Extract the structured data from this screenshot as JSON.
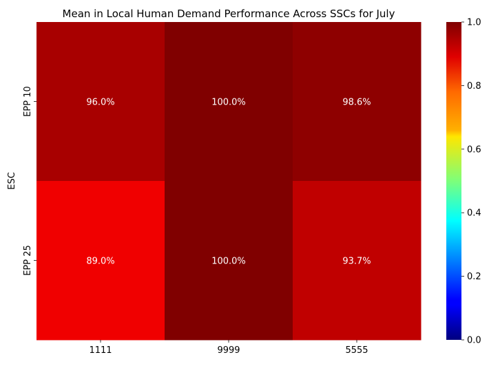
{
  "chart_data": {
    "type": "heatmap",
    "title": "Mean in Local Human Demand Performance Across SSCs for July",
    "xlabel": "",
    "ylabel": "ESC",
    "x_categories": [
      "1111",
      "9999",
      "5555"
    ],
    "y_categories": [
      "EPP 10",
      "EPP 25"
    ],
    "values": [
      [
        0.96,
        1.0,
        0.986
      ],
      [
        0.89,
        1.0,
        0.937
      ]
    ],
    "cell_labels": [
      [
        "96.0%",
        "100.0%",
        "98.6%"
      ],
      [
        "89.0%",
        "100.0%",
        "93.7%"
      ]
    ],
    "colormap": "jet",
    "colorbar": {
      "range": [
        0.0,
        1.0
      ],
      "ticks": [
        0.0,
        0.2,
        0.4,
        0.6,
        0.8,
        1.0
      ],
      "tick_labels": [
        "0.0",
        "0.2",
        "0.4",
        "0.6",
        "0.8",
        "1.0"
      ]
    }
  }
}
